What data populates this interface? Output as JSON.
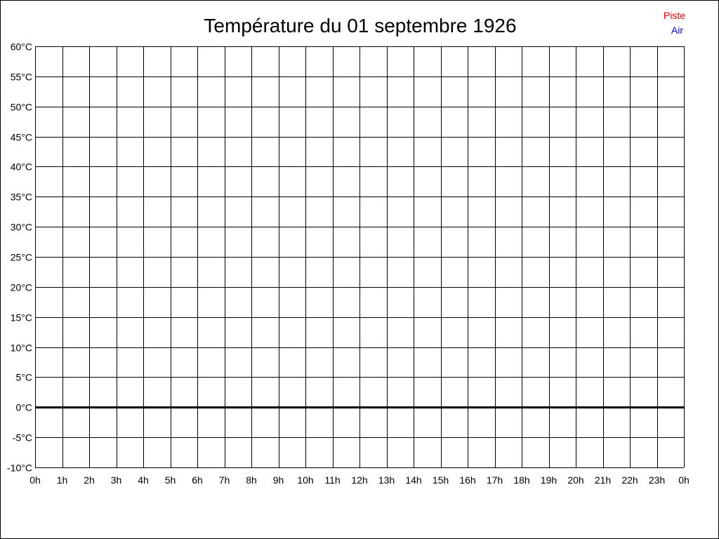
{
  "chart_data": {
    "type": "line",
    "title": "Température du 01 septembre 1926",
    "xlabel": "",
    "ylabel": "",
    "x_ticks": [
      "0h",
      "1h",
      "2h",
      "3h",
      "4h",
      "5h",
      "6h",
      "7h",
      "8h",
      "9h",
      "10h",
      "11h",
      "12h",
      "13h",
      "14h",
      "15h",
      "16h",
      "17h",
      "18h",
      "19h",
      "20h",
      "21h",
      "22h",
      "23h",
      "0h"
    ],
    "y_ticks": [
      "60°C",
      "55°C",
      "50°C",
      "45°C",
      "40°C",
      "35°C",
      "30°C",
      "25°C",
      "20°C",
      "15°C",
      "10°C",
      "5°C",
      "0°C",
      "-5°C",
      "-10°C"
    ],
    "xlim": [
      0,
      24
    ],
    "ylim": [
      -10,
      60
    ],
    "grid": true,
    "legend_position": "top-right",
    "series": [
      {
        "name": "Piste",
        "color": "#ff0000",
        "x": [],
        "y": []
      },
      {
        "name": "Air",
        "color": "#0000ff",
        "x": [],
        "y": []
      }
    ]
  }
}
